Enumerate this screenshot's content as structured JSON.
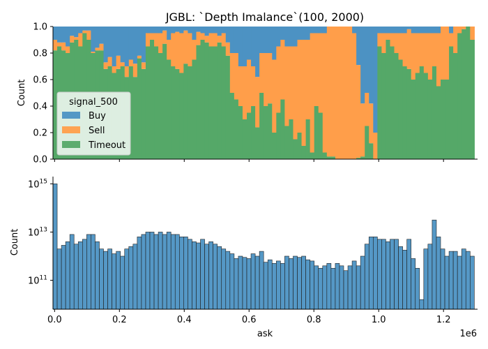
{
  "chart_data": [
    {
      "type": "area",
      "title": "JGBL: `Depth Imalance`(100, 2000)",
      "xlabel": "",
      "ylabel": "Count",
      "ylim": [
        0,
        1
      ],
      "y_ticks": [
        "0.0",
        "0.2",
        "0.4",
        "0.6",
        "0.8",
        "1.0"
      ],
      "xlim": [
        -5000,
        1305000
      ],
      "stacked_fraction_bins": 100,
      "legend": {
        "title": "signal_500",
        "placement": "center-left",
        "entries": [
          "Buy",
          "Sell",
          "Timeout"
        ]
      },
      "series": [
        {
          "name": "Timeout",
          "color": "#55a868",
          "values": [
            0.82,
            0.85,
            0.82,
            0.8,
            0.88,
            0.9,
            0.85,
            0.95,
            0.9,
            0.8,
            0.82,
            0.82,
            0.68,
            0.7,
            0.65,
            0.68,
            0.7,
            0.62,
            0.7,
            0.62,
            0.76,
            0.68,
            0.85,
            0.9,
            0.85,
            0.8,
            0.87,
            0.75,
            0.7,
            0.68,
            0.65,
            0.72,
            0.7,
            0.75,
            0.86,
            0.9,
            0.88,
            0.85,
            0.85,
            0.88,
            0.85,
            0.78,
            0.5,
            0.45,
            0.4,
            0.3,
            0.35,
            0.4,
            0.24,
            0.5,
            0.4,
            0.42,
            0.2,
            0.35,
            0.45,
            0.25,
            0.3,
            0.15,
            0.2,
            0.1,
            0.3,
            0.05,
            0.4,
            0.35,
            0.05,
            0.02,
            0.02,
            0.0,
            0.0,
            0.0,
            0.0,
            0.0,
            0.01,
            0.02,
            0.25,
            0.12,
            0.0,
            0.85,
            0.8,
            0.9,
            0.85,
            0.8,
            0.75,
            0.7,
            0.68,
            0.6,
            0.65,
            0.7,
            0.65,
            0.6,
            0.7,
            0.55,
            0.6,
            0.6,
            0.85,
            0.8,
            0.95,
            0.98,
            1.0,
            0.9
          ]
        },
        {
          "name": "Sell",
          "color": "#ff9e4a",
          "values": [
            0.08,
            0.03,
            0.06,
            0.05,
            0.05,
            0.02,
            0.1,
            0.02,
            0.07,
            0.01,
            0.02,
            0.05,
            0.05,
            0.07,
            0.05,
            0.1,
            0.03,
            0.08,
            0.05,
            0.1,
            0.02,
            0.05,
            0.1,
            0.05,
            0.1,
            0.15,
            0.1,
            0.15,
            0.25,
            0.28,
            0.3,
            0.25,
            0.25,
            0.15,
            0.1,
            0.05,
            0.05,
            0.1,
            0.1,
            0.05,
            0.1,
            0.1,
            0.3,
            0.35,
            0.3,
            0.4,
            0.4,
            0.3,
            0.38,
            0.3,
            0.4,
            0.38,
            0.55,
            0.5,
            0.45,
            0.6,
            0.55,
            0.7,
            0.7,
            0.8,
            0.6,
            0.9,
            0.55,
            0.6,
            0.9,
            0.98,
            0.98,
            1.0,
            1.0,
            1.0,
            1.0,
            0.95,
            0.7,
            0.4,
            0.25,
            0.3,
            0.2,
            0.1,
            0.15,
            0.05,
            0.1,
            0.15,
            0.2,
            0.25,
            0.3,
            0.35,
            0.3,
            0.25,
            0.3,
            0.35,
            0.25,
            0.4,
            0.4,
            0.4,
            0.1,
            0.2,
            0.05,
            0.02,
            0.0,
            0.1
          ]
        },
        {
          "name": "Buy",
          "color": "#4c92c3",
          "values": "remainder to 1.0"
        }
      ]
    },
    {
      "type": "bar",
      "title": "",
      "xlabel": "ask",
      "ylabel": "Count",
      "scale": "log",
      "ylim_exponent": [
        9.8,
        15.3
      ],
      "y_ticks": [
        {
          "base": "10",
          "exp": "11",
          "value": 100000000000.0
        },
        {
          "base": "10",
          "exp": "13",
          "value": 10000000000000.0
        },
        {
          "base": "10",
          "exp": "15",
          "value": 1000000000000000.0
        }
      ],
      "x_ticks": [
        "0.0",
        "0.2",
        "0.4",
        "0.6",
        "0.8",
        "1.0",
        "1.2"
      ],
      "x_tick_values": [
        0,
        200000,
        400000,
        600000,
        800000,
        1000000,
        1200000
      ],
      "x_offset_label": "1e6",
      "xlim": [
        -5000,
        1305000
      ],
      "bin_width": 13000,
      "bar_color": "#4c92c3",
      "values_log10": [
        15.0,
        12.3,
        12.45,
        12.6,
        12.9,
        12.5,
        12.6,
        12.7,
        12.9,
        12.9,
        12.6,
        12.3,
        12.2,
        12.3,
        12.1,
        12.2,
        12.0,
        12.3,
        12.4,
        12.5,
        12.8,
        12.9,
        13.0,
        13.0,
        12.9,
        13.0,
        12.9,
        13.0,
        12.9,
        12.9,
        12.8,
        12.8,
        12.7,
        12.6,
        12.55,
        12.7,
        12.5,
        12.6,
        12.5,
        12.4,
        12.3,
        12.2,
        12.1,
        11.9,
        12.0,
        11.95,
        11.9,
        12.1,
        12.0,
        12.2,
        11.75,
        11.85,
        11.7,
        11.8,
        11.7,
        12.0,
        11.9,
        12.0,
        11.95,
        12.0,
        11.85,
        11.8,
        11.6,
        11.5,
        11.6,
        11.7,
        11.5,
        11.7,
        11.6,
        11.4,
        11.6,
        11.8,
        11.6,
        12.0,
        12.5,
        12.8,
        12.8,
        12.7,
        12.7,
        12.6,
        12.7,
        12.7,
        12.4,
        12.25,
        12.7,
        11.9,
        11.5,
        10.2,
        12.3,
        12.5,
        13.5,
        12.8,
        12.3,
        12.0,
        12.2,
        12.2,
        12.0,
        12.3,
        12.2,
        12.0
      ]
    }
  ]
}
